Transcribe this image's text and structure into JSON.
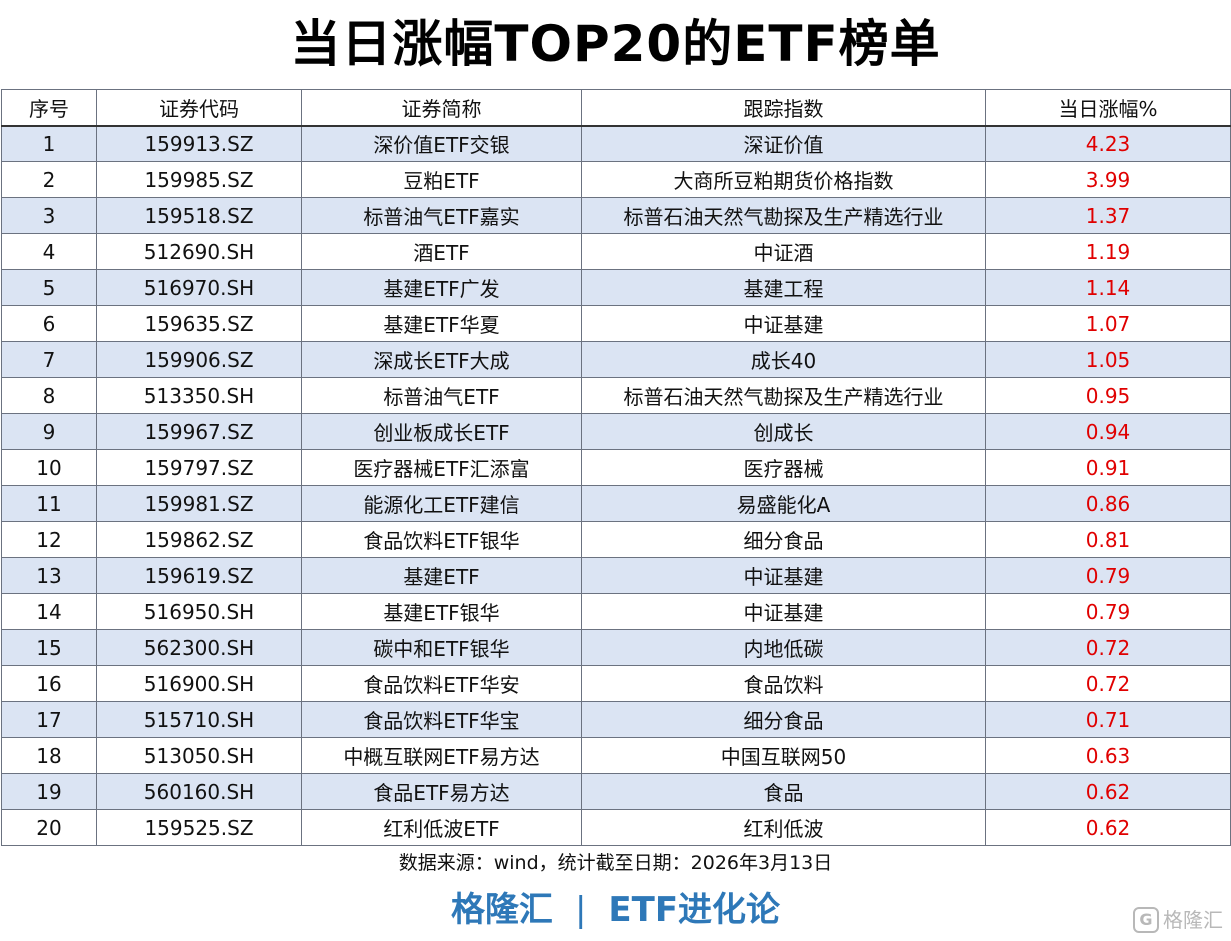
{
  "title": "当日涨幅TOP20的ETF榜单",
  "table": {
    "headers": [
      "序号",
      "证券代码",
      "证券简称",
      "跟踪指数",
      "当日涨幅%"
    ],
    "rows": [
      [
        "1",
        "159913.SZ",
        "深价值ETF交银",
        "深证价值",
        "4.23"
      ],
      [
        "2",
        "159985.SZ",
        "豆粕ETF",
        "大商所豆粕期货价格指数",
        "3.99"
      ],
      [
        "3",
        "159518.SZ",
        "标普油气ETF嘉实",
        "标普石油天然气勘探及生产精选行业",
        "1.37"
      ],
      [
        "4",
        "512690.SH",
        "酒ETF",
        "中证酒",
        "1.19"
      ],
      [
        "5",
        "516970.SH",
        "基建ETF广发",
        "基建工程",
        "1.14"
      ],
      [
        "6",
        "159635.SZ",
        "基建ETF华夏",
        "中证基建",
        "1.07"
      ],
      [
        "7",
        "159906.SZ",
        "深成长ETF大成",
        "成长40",
        "1.05"
      ],
      [
        "8",
        "513350.SH",
        "标普油气ETF",
        "标普石油天然气勘探及生产精选行业",
        "0.95"
      ],
      [
        "9",
        "159967.SZ",
        "创业板成长ETF",
        "创成长",
        "0.94"
      ],
      [
        "10",
        "159797.SZ",
        "医疗器械ETF汇添富",
        "医疗器械",
        "0.91"
      ],
      [
        "11",
        "159981.SZ",
        "能源化工ETF建信",
        "易盛能化A",
        "0.86"
      ],
      [
        "12",
        "159862.SZ",
        "食品饮料ETF银华",
        "细分食品",
        "0.81"
      ],
      [
        "13",
        "159619.SZ",
        "基建ETF",
        "中证基建",
        "0.79"
      ],
      [
        "14",
        "516950.SH",
        "基建ETF银华",
        "中证基建",
        "0.79"
      ],
      [
        "15",
        "562300.SH",
        "碳中和ETF银华",
        "内地低碳",
        "0.72"
      ],
      [
        "16",
        "516900.SH",
        "食品饮料ETF华安",
        "食品饮料",
        "0.72"
      ],
      [
        "17",
        "515710.SH",
        "食品饮料ETF华宝",
        "细分食品",
        "0.71"
      ],
      [
        "18",
        "513050.SH",
        "中概互联网ETF易方达",
        "中国互联网50",
        "0.63"
      ],
      [
        "19",
        "560160.SH",
        "食品ETF易方达",
        "食品",
        "0.62"
      ],
      [
        "20",
        "159525.SZ",
        "红利低波ETF",
        "红利低波",
        "0.62"
      ]
    ]
  },
  "source": "数据来源：wind，统计截至日期：2026年3月13日",
  "brand": {
    "left": "格隆汇",
    "separator": "|",
    "right": "ETF进化论"
  },
  "watermark": {
    "icon": "G",
    "text": "格隆汇"
  },
  "colors": {
    "row_stripe": "#dbe4f3",
    "change_value": "#e00000",
    "brand": "#2e78b8"
  }
}
